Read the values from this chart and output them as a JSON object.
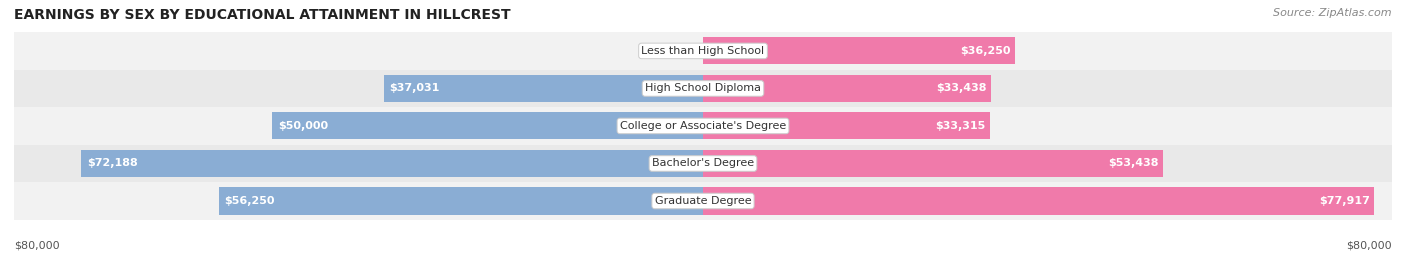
{
  "title": "EARNINGS BY SEX BY EDUCATIONAL ATTAINMENT IN HILLCREST",
  "source": "Source: ZipAtlas.com",
  "categories": [
    "Less than High School",
    "High School Diploma",
    "College or Associate's Degree",
    "Bachelor's Degree",
    "Graduate Degree"
  ],
  "male_values": [
    0,
    37031,
    50000,
    72188,
    56250
  ],
  "female_values": [
    36250,
    33438,
    33315,
    53438,
    77917
  ],
  "male_color": "#8aadd4",
  "female_color": "#f07aaa",
  "max_value": 80000,
  "background_color": "#FFFFFF",
  "row_bg_even": "#F2F2F2",
  "row_bg_odd": "#E9E9E9",
  "title_fontsize": 10,
  "source_fontsize": 8,
  "value_fontsize": 8,
  "cat_fontsize": 8,
  "axis_fontsize": 8,
  "axis_label_left": "$80,000",
  "axis_label_right": "$80,000"
}
